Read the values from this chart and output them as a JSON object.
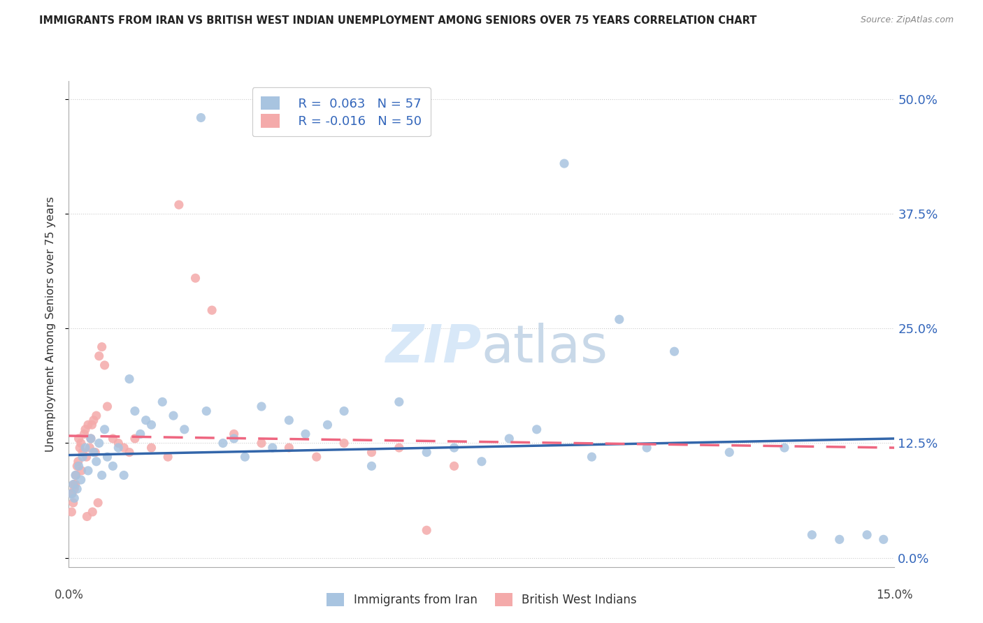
{
  "title": "IMMIGRANTS FROM IRAN VS BRITISH WEST INDIAN UNEMPLOYMENT AMONG SENIORS OVER 75 YEARS CORRELATION CHART",
  "source": "Source: ZipAtlas.com",
  "ylabel": "Unemployment Among Seniors over 75 years",
  "ytick_vals": [
    0.0,
    12.5,
    25.0,
    37.5,
    50.0
  ],
  "xlim": [
    0.0,
    15.0
  ],
  "ylim": [
    -1.0,
    52.0
  ],
  "watermark": "ZIPatlas",
  "legend_iran": {
    "R": 0.063,
    "N": 57,
    "label": "Immigrants from Iran"
  },
  "legend_bwi": {
    "R": -0.016,
    "N": 50,
    "label": "British West Indians"
  },
  "blue_color": "#A8C4E0",
  "pink_color": "#F4AAAA",
  "blue_line_color": "#3366AA",
  "pink_line_color": "#EE6680",
  "iran_x": [
    0.05,
    0.08,
    0.1,
    0.12,
    0.15,
    0.18,
    0.22,
    0.25,
    0.3,
    0.35,
    0.4,
    0.45,
    0.5,
    0.55,
    0.6,
    0.65,
    0.7,
    0.8,
    0.9,
    1.0,
    1.1,
    1.2,
    1.3,
    1.4,
    1.5,
    1.7,
    1.9,
    2.1,
    2.4,
    2.5,
    2.8,
    3.0,
    3.2,
    3.5,
    3.7,
    4.0,
    4.3,
    4.7,
    5.0,
    5.5,
    6.0,
    6.5,
    7.0,
    7.5,
    8.0,
    8.5,
    9.0,
    9.5,
    10.0,
    10.5,
    11.0,
    12.0,
    13.0,
    13.5,
    14.0,
    14.5,
    14.8
  ],
  "iran_y": [
    7.0,
    8.0,
    6.5,
    9.0,
    7.5,
    10.0,
    8.5,
    11.0,
    12.0,
    9.5,
    13.0,
    11.5,
    10.5,
    12.5,
    9.0,
    14.0,
    11.0,
    10.0,
    12.0,
    9.0,
    19.5,
    16.0,
    13.5,
    15.0,
    14.5,
    17.0,
    15.5,
    14.0,
    48.0,
    16.0,
    12.5,
    13.0,
    11.0,
    16.5,
    12.0,
    15.0,
    13.5,
    14.5,
    16.0,
    10.0,
    17.0,
    11.5,
    12.0,
    10.5,
    13.0,
    14.0,
    43.0,
    11.0,
    26.0,
    12.0,
    22.5,
    11.5,
    12.0,
    2.5,
    2.0,
    2.5,
    2.0
  ],
  "bwi_x": [
    0.05,
    0.08,
    0.1,
    0.12,
    0.15,
    0.18,
    0.2,
    0.22,
    0.25,
    0.28,
    0.3,
    0.32,
    0.35,
    0.38,
    0.4,
    0.42,
    0.45,
    0.48,
    0.5,
    0.55,
    0.6,
    0.65,
    0.7,
    0.8,
    0.9,
    1.0,
    1.1,
    1.2,
    1.5,
    1.8,
    2.0,
    2.3,
    2.6,
    3.0,
    3.5,
    4.0,
    4.5,
    5.0,
    5.5,
    6.0,
    6.5,
    7.0,
    0.06,
    0.09,
    0.13,
    0.17,
    0.23,
    0.33,
    0.43,
    0.53
  ],
  "bwi_y": [
    5.0,
    6.0,
    7.5,
    8.0,
    10.0,
    13.0,
    12.0,
    12.5,
    11.5,
    13.5,
    14.0,
    11.0,
    14.5,
    12.0,
    13.0,
    14.5,
    15.0,
    11.5,
    15.5,
    22.0,
    23.0,
    21.0,
    16.5,
    13.0,
    12.5,
    12.0,
    11.5,
    13.0,
    12.0,
    11.0,
    38.5,
    30.5,
    27.0,
    13.5,
    12.5,
    12.0,
    11.0,
    12.5,
    11.5,
    12.0,
    3.0,
    10.0,
    7.0,
    8.0,
    9.0,
    10.5,
    9.5,
    4.5,
    5.0,
    6.0
  ],
  "iran_trend_x0": 0.0,
  "iran_trend_y0": 11.2,
  "iran_trend_x1": 15.0,
  "iran_trend_y1": 13.0,
  "bwi_trend_x0": 0.0,
  "bwi_trend_y0": 13.3,
  "bwi_trend_x1": 15.0,
  "bwi_trend_y1": 12.0
}
